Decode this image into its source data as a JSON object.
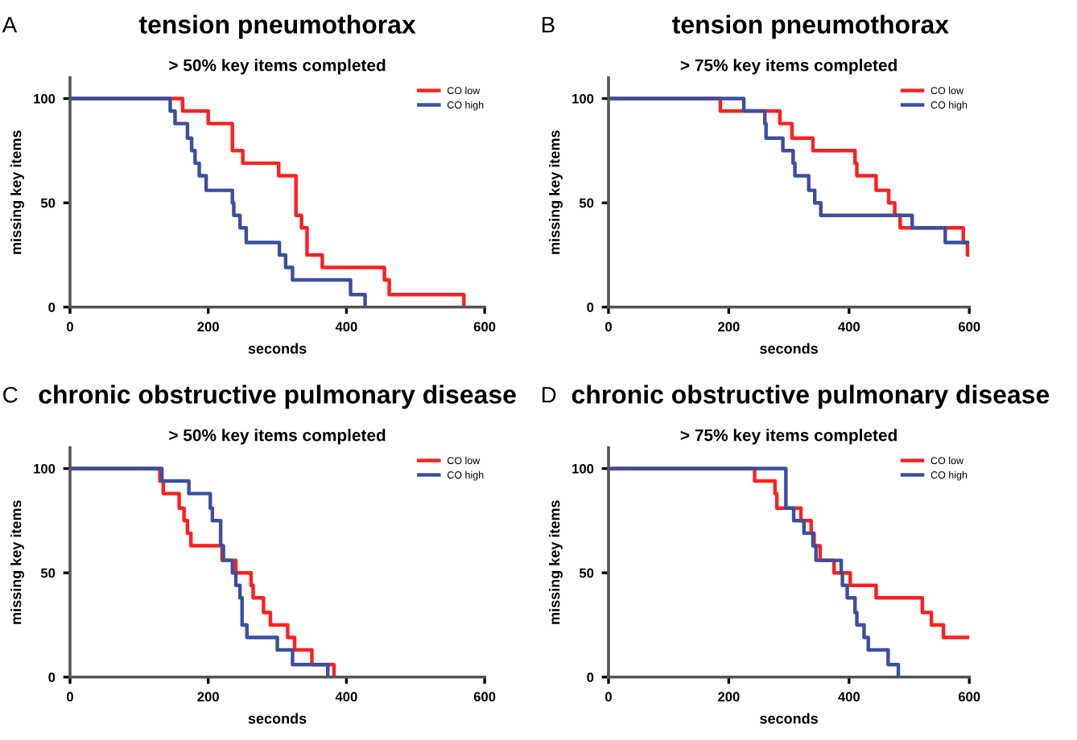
{
  "chart_data": [
    {
      "type": "step",
      "title": "tension pneumothorax",
      "subtitle": "> 50% key items completed",
      "xlabel": "seconds",
      "ylabel": "missing key items",
      "annotations": [
        "A"
      ],
      "xlim": [
        0,
        600
      ],
      "ylim": [
        0,
        110
      ],
      "xticks": [
        0,
        200,
        400,
        600
      ],
      "yticks": [
        0,
        50,
        100
      ],
      "legend": "top right",
      "grid": false,
      "series": [
        {
          "name": "CO low",
          "color": "#ff2020",
          "x": [
            0,
            163,
            200,
            235,
            250,
            302,
            327,
            335,
            343,
            365,
            455,
            462,
            570
          ],
          "values": [
            100,
            94,
            88,
            75,
            69,
            63,
            44,
            38,
            25,
            19,
            13,
            6,
            0
          ]
        },
        {
          "name": "CO high",
          "color": "#3b4fa0",
          "x": [
            0,
            145,
            152,
            170,
            176,
            181,
            187,
            197,
            235,
            237,
            246,
            255,
            303,
            312,
            322,
            406,
            427
          ],
          "values": [
            100,
            94,
            88,
            81,
            75,
            69,
            63,
            56,
            50,
            44,
            38,
            31,
            25,
            19,
            13,
            6,
            0
          ]
        }
      ]
    },
    {
      "type": "step",
      "title": "tension pneumothorax",
      "subtitle": "> 75% key items completed",
      "xlabel": "seconds",
      "ylabel": "missing key items",
      "annotations": [
        "B"
      ],
      "xlim": [
        0,
        600
      ],
      "ylim": [
        0,
        110
      ],
      "xticks": [
        0,
        200,
        400,
        600
      ],
      "yticks": [
        0,
        50,
        100
      ],
      "legend": "top right",
      "grid": false,
      "series": [
        {
          "name": "CO low",
          "color": "#ff2020",
          "x": [
            0,
            186,
            285,
            305,
            340,
            410,
            413,
            445,
            466,
            476,
            485,
            590,
            597,
            600
          ],
          "values": [
            100,
            94,
            88,
            81,
            75,
            69,
            63,
            56,
            50,
            44,
            38,
            31,
            25,
            25
          ]
        },
        {
          "name": "CO high",
          "color": "#3b4fa0",
          "x": [
            0,
            225,
            260,
            262,
            290,
            307,
            310,
            333,
            343,
            353,
            505,
            560,
            600
          ],
          "values": [
            100,
            94,
            88,
            81,
            75,
            69,
            63,
            56,
            50,
            44,
            38,
            31,
            31
          ]
        }
      ]
    },
    {
      "type": "step",
      "title": "chronic obstructive pulmonary disease",
      "subtitle": "> 50% key items completed",
      "xlabel": "seconds",
      "ylabel": "missing key items",
      "annotations": [
        "C"
      ],
      "xlim": [
        0,
        600
      ],
      "ylim": [
        0,
        110
      ],
      "xticks": [
        0,
        200,
        400,
        600
      ],
      "yticks": [
        0,
        50,
        100
      ],
      "legend": "top right",
      "grid": false,
      "series": [
        {
          "name": "CO low",
          "color": "#ff2020",
          "x": [
            0,
            130,
            135,
            158,
            165,
            170,
            175,
            220,
            240,
            262,
            265,
            280,
            290,
            315,
            325,
            350,
            382
          ],
          "values": [
            100,
            94,
            88,
            81,
            75,
            69,
            63,
            56,
            50,
            44,
            38,
            31,
            25,
            19,
            13,
            6,
            0
          ]
        },
        {
          "name": "CO high",
          "color": "#3b4fa0",
          "x": [
            0,
            133,
            172,
            203,
            206,
            218,
            222,
            235,
            240,
            246,
            249,
            256,
            300,
            322,
            373
          ],
          "values": [
            100,
            94,
            88,
            81,
            75,
            63,
            56,
            50,
            44,
            38,
            25,
            19,
            13,
            6,
            0
          ]
        }
      ]
    },
    {
      "type": "step",
      "title": "chronic obstructive pulmonary disease",
      "subtitle": "> 75% key items completed",
      "xlabel": "seconds",
      "ylabel": "missing key items",
      "annotations": [
        "D"
      ],
      "xlim": [
        0,
        600
      ],
      "ylim": [
        0,
        110
      ],
      "xticks": [
        0,
        200,
        400,
        600
      ],
      "yticks": [
        0,
        50,
        100
      ],
      "legend": "top right",
      "grid": false,
      "series": [
        {
          "name": "CO low",
          "color": "#ff2020",
          "x": [
            0,
            243,
            277,
            280,
            320,
            337,
            342,
            352,
            375,
            402,
            445,
            522,
            537,
            557,
            600
          ],
          "values": [
            100,
            94,
            88,
            81,
            75,
            69,
            63,
            56,
            50,
            44,
            38,
            31,
            25,
            19,
            19
          ]
        },
        {
          "name": "CO high",
          "color": "#3b4fa0",
          "x": [
            0,
            295,
            308,
            325,
            340,
            345,
            387,
            389,
            397,
            410,
            413,
            425,
            432,
            465,
            482
          ],
          "values": [
            100,
            81,
            75,
            69,
            63,
            56,
            50,
            44,
            38,
            31,
            25,
            19,
            13,
            6,
            0
          ]
        }
      ]
    }
  ]
}
